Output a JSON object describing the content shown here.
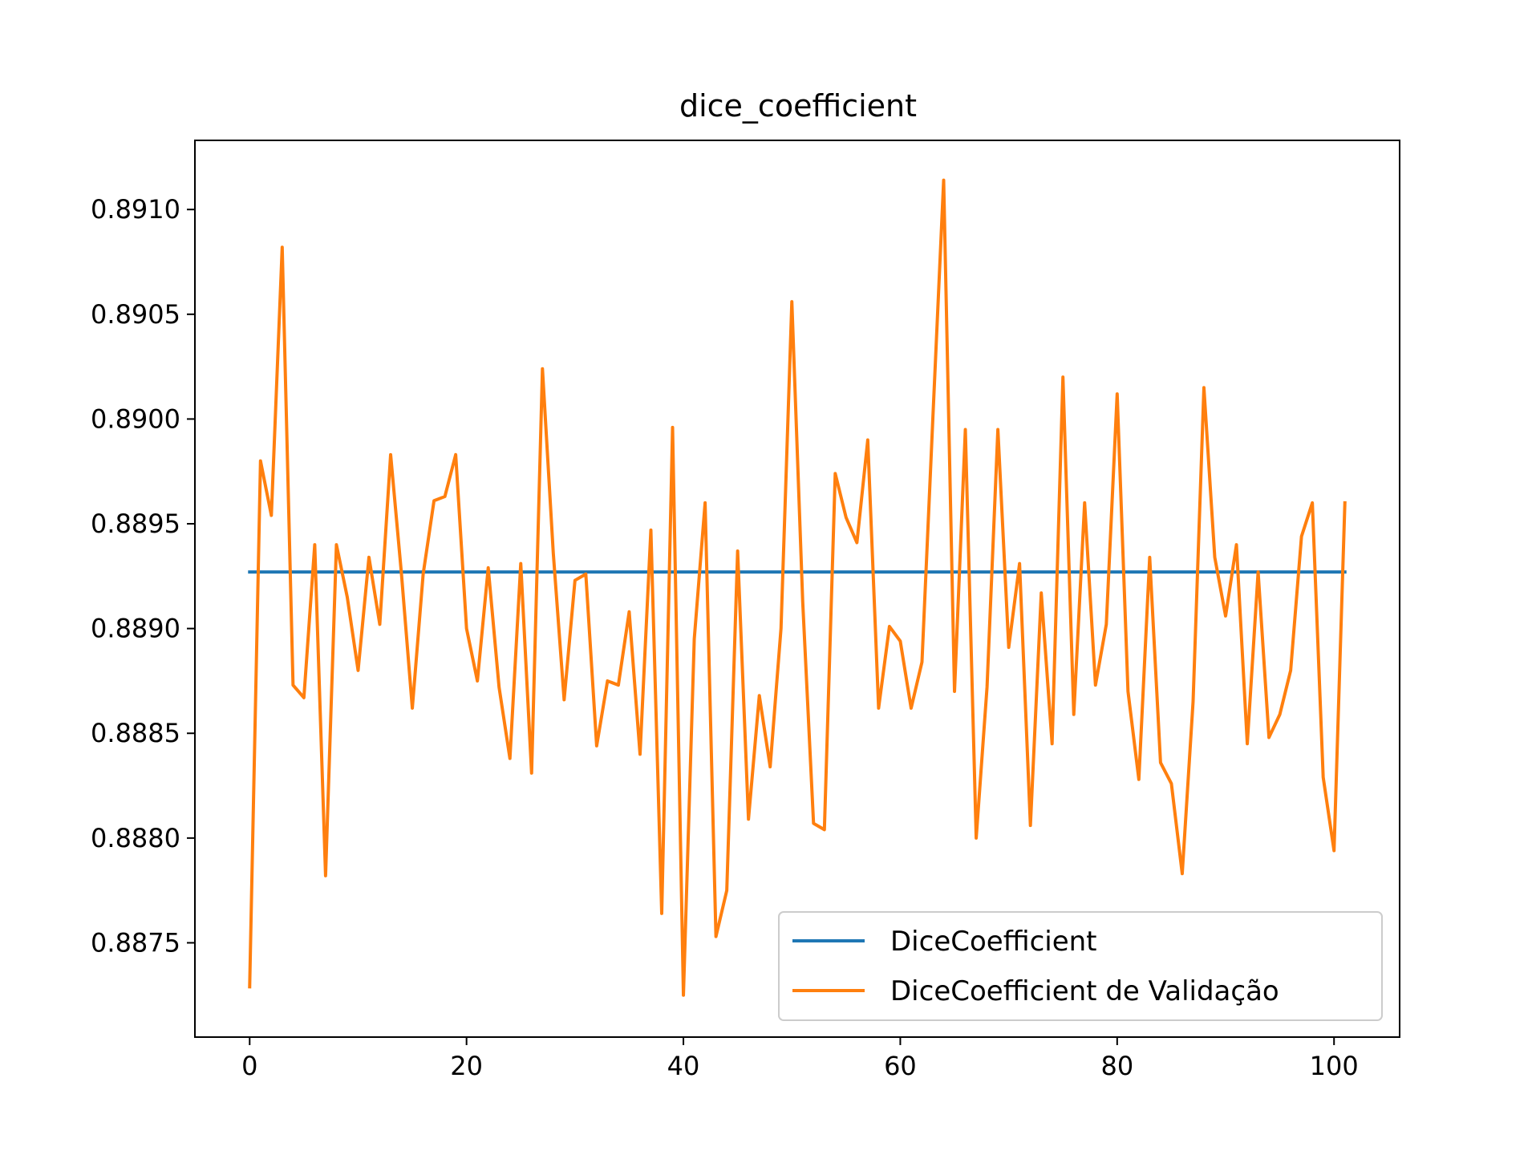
{
  "chart_data": {
    "type": "line",
    "title": "dice_coefficient",
    "xlabel": "",
    "ylabel": "",
    "xlim": [
      -5.05,
      106.05
    ],
    "ylim": [
      0.88705,
      0.89133
    ],
    "xticks": [
      0,
      20,
      40,
      60,
      80,
      100
    ],
    "xtick_labels": [
      "0",
      "20",
      "40",
      "60",
      "80",
      "100"
    ],
    "yticks": [
      0.8875,
      0.888,
      0.8885,
      0.889,
      0.8895,
      0.89,
      0.8905,
      0.891
    ],
    "ytick_labels": [
      "0.8875",
      "0.8880",
      "0.8885",
      "0.8890",
      "0.8895",
      "0.8900",
      "0.8905",
      "0.8910"
    ],
    "grid": false,
    "legend_position": "lower-right",
    "series": [
      {
        "name": "DiceCoefficient",
        "color": "#1f77b4",
        "x_start": 0,
        "x_step": 1,
        "values": [
          0.88927,
          0.88927,
          0.88927,
          0.88927,
          0.88927,
          0.88927,
          0.88927,
          0.88927,
          0.88927,
          0.88927,
          0.88927,
          0.88927,
          0.88927,
          0.88927,
          0.88927,
          0.88927,
          0.88927,
          0.88927,
          0.88927,
          0.88927,
          0.88927,
          0.88927,
          0.88927,
          0.88927,
          0.88927,
          0.88927,
          0.88927,
          0.88927,
          0.88927,
          0.88927,
          0.88927,
          0.88927,
          0.88927,
          0.88927,
          0.88927,
          0.88927,
          0.88927,
          0.88927,
          0.88927,
          0.88927,
          0.88927,
          0.88927,
          0.88927,
          0.88927,
          0.88927,
          0.88927,
          0.88927,
          0.88927,
          0.88927,
          0.88927,
          0.88927,
          0.88927,
          0.88927,
          0.88927,
          0.88927,
          0.88927,
          0.88927,
          0.88927,
          0.88927,
          0.88927,
          0.88927,
          0.88927,
          0.88927,
          0.88927,
          0.88927,
          0.88927,
          0.88927,
          0.88927,
          0.88927,
          0.88927,
          0.88927,
          0.88927,
          0.88927,
          0.88927,
          0.88927,
          0.88927,
          0.88927,
          0.88927,
          0.88927,
          0.88927,
          0.88927,
          0.88927,
          0.88927,
          0.88927,
          0.88927,
          0.88927,
          0.88927,
          0.88927,
          0.88927,
          0.88927,
          0.88927,
          0.88927,
          0.88927,
          0.88927,
          0.88927,
          0.88927,
          0.88927,
          0.88927,
          0.88927,
          0.88927,
          0.88927,
          0.88927
        ]
      },
      {
        "name": "DiceCoefficient de Validação",
        "color": "#ff7f0e",
        "x_start": 0,
        "x_step": 1,
        "values": [
          0.88729,
          0.8898,
          0.88954,
          0.89082,
          0.88873,
          0.88867,
          0.8894,
          0.88782,
          0.8894,
          0.88915,
          0.8888,
          0.88934,
          0.88902,
          0.88983,
          0.88926,
          0.88862,
          0.88926,
          0.88961,
          0.88963,
          0.88983,
          0.889,
          0.88875,
          0.88929,
          0.88872,
          0.88838,
          0.88931,
          0.88831,
          0.89024,
          0.88936,
          0.88866,
          0.88923,
          0.88926,
          0.88844,
          0.88875,
          0.88873,
          0.88908,
          0.8884,
          0.88947,
          0.88764,
          0.88996,
          0.88725,
          0.88895,
          0.8896,
          0.88753,
          0.88775,
          0.88937,
          0.88809,
          0.88868,
          0.88834,
          0.889,
          0.89056,
          0.88913,
          0.88807,
          0.88804,
          0.88974,
          0.88953,
          0.88941,
          0.8899,
          0.88862,
          0.88901,
          0.88894,
          0.88862,
          0.88884,
          0.89,
          0.89114,
          0.8887,
          0.88995,
          0.888,
          0.88872,
          0.88995,
          0.88891,
          0.88931,
          0.88806,
          0.88917,
          0.88845,
          0.8902,
          0.88859,
          0.8896,
          0.88873,
          0.88902,
          0.89012,
          0.8887,
          0.88828,
          0.88934,
          0.88836,
          0.88826,
          0.88783,
          0.88865,
          0.89015,
          0.88934,
          0.88906,
          0.8894,
          0.88845,
          0.88927,
          0.88848,
          0.88859,
          0.8888,
          0.88944,
          0.8896,
          0.88829,
          0.88794,
          0.8896
        ]
      }
    ]
  }
}
